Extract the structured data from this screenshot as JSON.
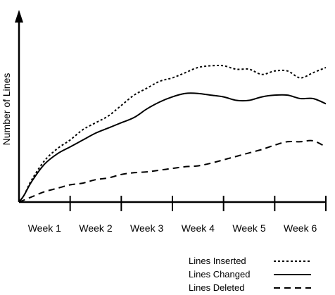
{
  "chart_data": {
    "type": "line",
    "title": "",
    "xlabel": "",
    "ylabel": "Number of Lines",
    "categories": [
      "Week 1",
      "Week 2",
      "Week 3",
      "Week 4",
      "Week 5",
      "Week 6"
    ],
    "x_range": [
      0,
      6
    ],
    "y_range": [
      0,
      100
    ],
    "grid": false,
    "legend_position": "bottom-right",
    "series": [
      {
        "name": "Lines Inserted",
        "dash": "dotted",
        "color": "#000000",
        "points": [
          [
            0,
            0
          ],
          [
            0.1,
            4
          ],
          [
            0.25,
            13
          ],
          [
            0.5,
            24
          ],
          [
            0.75,
            31
          ],
          [
            1.0,
            36
          ],
          [
            1.25,
            42
          ],
          [
            1.5,
            46
          ],
          [
            1.75,
            50
          ],
          [
            2.0,
            56
          ],
          [
            2.25,
            62
          ],
          [
            2.5,
            66
          ],
          [
            2.75,
            70
          ],
          [
            3.0,
            72
          ],
          [
            3.25,
            75
          ],
          [
            3.5,
            78
          ],
          [
            3.75,
            79
          ],
          [
            4.0,
            79
          ],
          [
            4.25,
            77
          ],
          [
            4.5,
            77
          ],
          [
            4.75,
            74
          ],
          [
            5.0,
            76
          ],
          [
            5.25,
            76
          ],
          [
            5.5,
            72
          ],
          [
            5.75,
            75
          ],
          [
            6.0,
            78
          ]
        ]
      },
      {
        "name": "Lines Changed",
        "dash": "solid",
        "color": "#000000",
        "points": [
          [
            0,
            0
          ],
          [
            0.1,
            4
          ],
          [
            0.25,
            12
          ],
          [
            0.5,
            22
          ],
          [
            0.75,
            28
          ],
          [
            1.0,
            32
          ],
          [
            1.25,
            36
          ],
          [
            1.5,
            40
          ],
          [
            1.75,
            43
          ],
          [
            2.0,
            46
          ],
          [
            2.25,
            49
          ],
          [
            2.5,
            54
          ],
          [
            2.75,
            58
          ],
          [
            3.0,
            61
          ],
          [
            3.25,
            63
          ],
          [
            3.5,
            63
          ],
          [
            3.75,
            62
          ],
          [
            4.0,
            61
          ],
          [
            4.25,
            59
          ],
          [
            4.5,
            59
          ],
          [
            4.75,
            61
          ],
          [
            5.0,
            62
          ],
          [
            5.25,
            62
          ],
          [
            5.5,
            60
          ],
          [
            5.75,
            60
          ],
          [
            6.0,
            57
          ]
        ]
      },
      {
        "name": "Lines Deleted",
        "dash": "dashed",
        "color": "#000000",
        "points": [
          [
            0,
            0
          ],
          [
            0.25,
            3
          ],
          [
            0.5,
            6
          ],
          [
            0.75,
            8
          ],
          [
            1.0,
            10
          ],
          [
            1.25,
            11
          ],
          [
            1.5,
            13
          ],
          [
            1.75,
            14
          ],
          [
            2.0,
            16
          ],
          [
            2.25,
            17
          ],
          [
            2.5,
            17.5
          ],
          [
            2.75,
            18.5
          ],
          [
            3.0,
            19.5
          ],
          [
            3.25,
            20.5
          ],
          [
            3.5,
            21
          ],
          [
            3.75,
            22.5
          ],
          [
            4.0,
            24.5
          ],
          [
            4.25,
            26.5
          ],
          [
            4.5,
            28.5
          ],
          [
            4.75,
            30.5
          ],
          [
            5.0,
            33
          ],
          [
            5.25,
            35
          ],
          [
            5.5,
            35
          ],
          [
            5.75,
            35.5
          ],
          [
            6.0,
            32
          ]
        ]
      }
    ]
  }
}
